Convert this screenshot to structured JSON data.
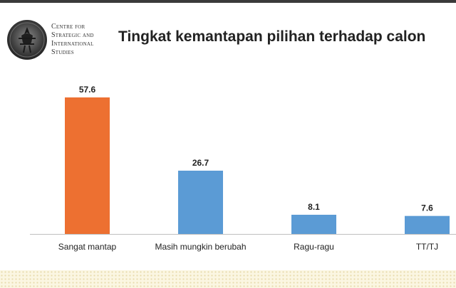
{
  "header": {
    "org_lines": [
      "Centre for",
      "Strategic and",
      "International",
      "Studies"
    ],
    "title": "Tingkat kemantapan pilihan terhadap calon"
  },
  "colors": {
    "highlight_bar": "#ed7031",
    "bar": "#5b9bd5",
    "axis": "#bfbfbf",
    "text": "#222222"
  },
  "chart_data": {
    "type": "bar",
    "title": "Tingkat kemantapan pilihan terhadap calon",
    "categories": [
      "Sangat mantap",
      "Masih mungkin berubah",
      "Ragu-ragu",
      "TT/TJ"
    ],
    "values": [
      57.6,
      26.7,
      8.1,
      7.6
    ],
    "data_labels": [
      "57.6",
      "26.7",
      "8.1",
      "7.6"
    ],
    "highlight_index": 0,
    "xlabel": "",
    "ylabel": "",
    "ylim": [
      0,
      60
    ],
    "grid": false,
    "legend": "none"
  }
}
